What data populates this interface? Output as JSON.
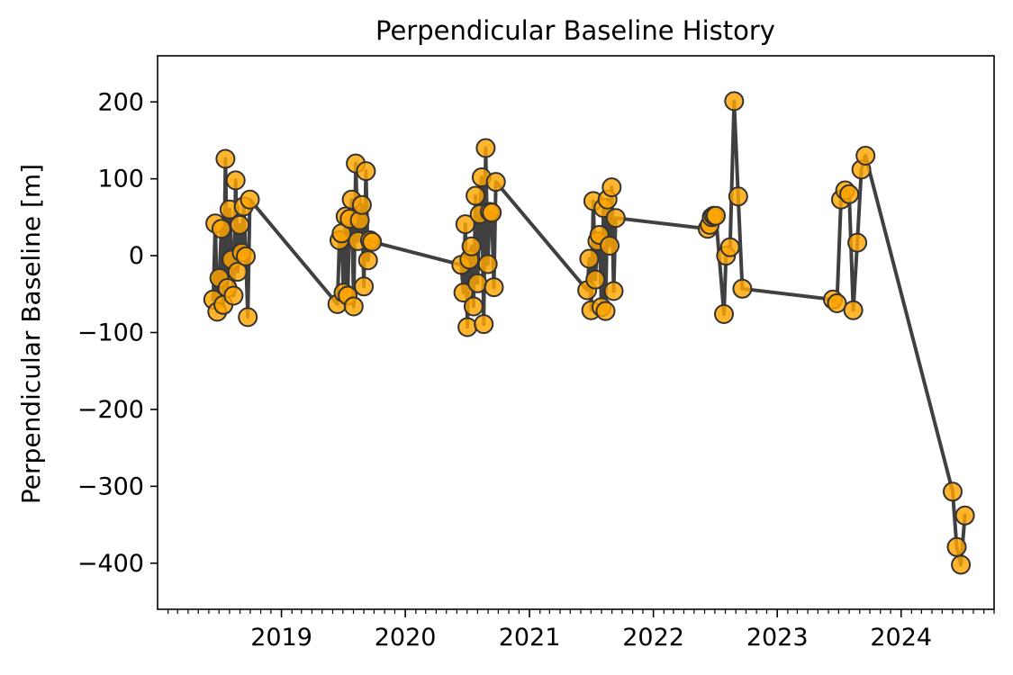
{
  "chart_data": {
    "type": "line",
    "title": "Perpendicular Baseline History",
    "xlabel": "",
    "ylabel": "Perpendicular Baseline [m]",
    "x_axis_type": "date",
    "xlim": [
      "2018-01-01",
      "2024-10-01"
    ],
    "ylim": [
      -460,
      260
    ],
    "x_tick_labels": [
      "2019",
      "2020",
      "2021",
      "2022",
      "2023",
      "2024"
    ],
    "x_tick_dates": [
      "2019-01-01",
      "2020-01-01",
      "2021-01-01",
      "2022-01-01",
      "2023-01-01",
      "2024-01-01"
    ],
    "y_ticks": [
      200,
      100,
      0,
      -100,
      -200,
      -300,
      -400
    ],
    "y_tick_labels": [
      "200",
      "100",
      "0",
      "−100",
      "−200",
      "−300",
      "−400"
    ],
    "grid": false,
    "legend": "none",
    "colors": {
      "line": "#404040",
      "marker_fill": "#FFA500",
      "marker_edge": "#333333"
    },
    "series": [
      {
        "points": [
          {
            "x": "2018-06-14",
            "y": -57
          },
          {
            "x": "2018-06-20",
            "y": 42
          },
          {
            "x": "2018-06-26",
            "y": -73
          },
          {
            "x": "2018-07-02",
            "y": -29
          },
          {
            "x": "2018-07-08",
            "y": 35
          },
          {
            "x": "2018-07-14",
            "y": -64
          },
          {
            "x": "2018-07-20",
            "y": 126
          },
          {
            "x": "2018-07-26",
            "y": -42
          },
          {
            "x": "2018-08-01",
            "y": 60
          },
          {
            "x": "2018-08-07",
            "y": -5
          },
          {
            "x": "2018-08-13",
            "y": -52
          },
          {
            "x": "2018-08-19",
            "y": 98
          },
          {
            "x": "2018-08-25",
            "y": -21
          },
          {
            "x": "2018-08-31",
            "y": 40
          },
          {
            "x": "2018-09-06",
            "y": 4
          },
          {
            "x": "2018-09-12",
            "y": 64
          },
          {
            "x": "2018-09-18",
            "y": -1
          },
          {
            "x": "2018-09-24",
            "y": -80
          },
          {
            "x": "2018-09-30",
            "y": 73
          },
          {
            "x": "2019-06-15",
            "y": -63
          },
          {
            "x": "2019-06-21",
            "y": 20
          },
          {
            "x": "2019-06-27",
            "y": 29
          },
          {
            "x": "2019-07-03",
            "y": -48
          },
          {
            "x": "2019-07-09",
            "y": 51
          },
          {
            "x": "2019-07-15",
            "y": -52
          },
          {
            "x": "2019-07-21",
            "y": 48
          },
          {
            "x": "2019-07-27",
            "y": 73
          },
          {
            "x": "2019-08-02",
            "y": -66
          },
          {
            "x": "2019-08-08",
            "y": 120
          },
          {
            "x": "2019-08-14",
            "y": 19
          },
          {
            "x": "2019-08-20",
            "y": 46
          },
          {
            "x": "2019-08-26",
            "y": 66
          },
          {
            "x": "2019-09-01",
            "y": -40
          },
          {
            "x": "2019-09-07",
            "y": 110
          },
          {
            "x": "2019-09-13",
            "y": -6
          },
          {
            "x": "2019-09-19",
            "y": 20
          },
          {
            "x": "2019-09-25",
            "y": 18
          },
          {
            "x": "2020-06-14",
            "y": -12
          },
          {
            "x": "2020-06-20",
            "y": -48
          },
          {
            "x": "2020-06-26",
            "y": 41
          },
          {
            "x": "2020-07-02",
            "y": -93
          },
          {
            "x": "2020-07-08",
            "y": -5
          },
          {
            "x": "2020-07-14",
            "y": 12
          },
          {
            "x": "2020-07-20",
            "y": -66
          },
          {
            "x": "2020-07-26",
            "y": 78
          },
          {
            "x": "2020-08-01",
            "y": -36
          },
          {
            "x": "2020-08-07",
            "y": 54
          },
          {
            "x": "2020-08-13",
            "y": 102
          },
          {
            "x": "2020-08-19",
            "y": -89
          },
          {
            "x": "2020-08-25",
            "y": 140
          },
          {
            "x": "2020-08-31",
            "y": -11
          },
          {
            "x": "2020-09-06",
            "y": 57
          },
          {
            "x": "2020-09-12",
            "y": 56
          },
          {
            "x": "2020-09-18",
            "y": -41
          },
          {
            "x": "2020-09-24",
            "y": 96
          },
          {
            "x": "2021-06-20",
            "y": -45
          },
          {
            "x": "2021-06-26",
            "y": -4
          },
          {
            "x": "2021-07-02",
            "y": -71
          },
          {
            "x": "2021-07-08",
            "y": 71
          },
          {
            "x": "2021-07-14",
            "y": -31
          },
          {
            "x": "2021-07-20",
            "y": 19
          },
          {
            "x": "2021-07-26",
            "y": 27
          },
          {
            "x": "2021-08-01",
            "y": -67
          },
          {
            "x": "2021-08-07",
            "y": 62
          },
          {
            "x": "2021-08-13",
            "y": -72
          },
          {
            "x": "2021-08-19",
            "y": 73
          },
          {
            "x": "2021-08-25",
            "y": 13
          },
          {
            "x": "2021-08-31",
            "y": 89
          },
          {
            "x": "2021-09-06",
            "y": -46
          },
          {
            "x": "2021-09-12",
            "y": 49
          },
          {
            "x": "2022-06-10",
            "y": 35
          },
          {
            "x": "2022-06-16",
            "y": 40
          },
          {
            "x": "2022-06-22",
            "y": 50
          },
          {
            "x": "2022-06-28",
            "y": 52
          },
          {
            "x": "2022-07-04",
            "y": 52
          },
          {
            "x": "2022-07-28",
            "y": -76
          },
          {
            "x": "2022-08-03",
            "y": 0
          },
          {
            "x": "2022-08-15",
            "y": 11
          },
          {
            "x": "2022-08-27",
            "y": 201
          },
          {
            "x": "2022-09-08",
            "y": 77
          },
          {
            "x": "2022-09-20",
            "y": -43
          },
          {
            "x": "2023-06-14",
            "y": -57
          },
          {
            "x": "2023-06-26",
            "y": -62
          },
          {
            "x": "2023-07-08",
            "y": 73
          },
          {
            "x": "2023-07-20",
            "y": 85
          },
          {
            "x": "2023-08-01",
            "y": 80
          },
          {
            "x": "2023-08-13",
            "y": -71
          },
          {
            "x": "2023-08-25",
            "y": 17
          },
          {
            "x": "2023-09-06",
            "y": 112
          },
          {
            "x": "2023-09-18",
            "y": 130
          },
          {
            "x": "2024-06-01",
            "y": -307
          },
          {
            "x": "2024-06-13",
            "y": -379
          },
          {
            "x": "2024-06-25",
            "y": -402
          },
          {
            "x": "2024-07-07",
            "y": -338
          }
        ]
      }
    ]
  }
}
